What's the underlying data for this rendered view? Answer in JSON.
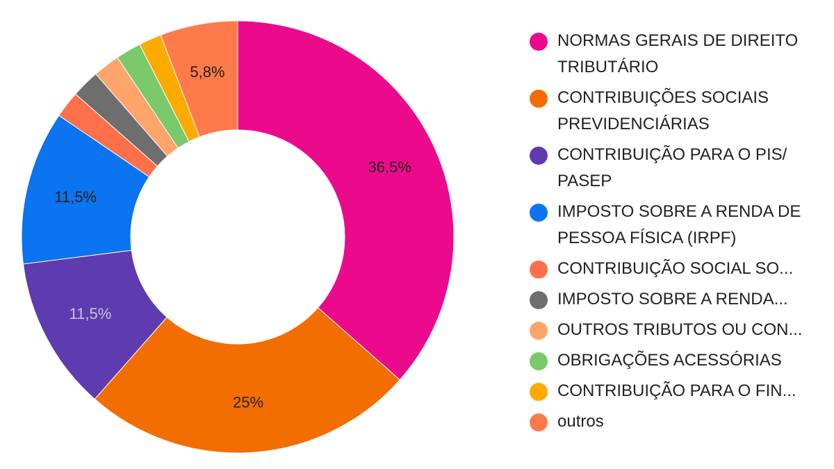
{
  "chart_data": {
    "type": "pie",
    "donut": true,
    "legend_position": "right",
    "slices": [
      {
        "name": "NORMAS GERAIS DE DIREITO TRIBUTÁRIO",
        "value": 36.5,
        "label": "36,5%",
        "color": "#EC0A8C",
        "label_color": "#222222"
      },
      {
        "name": "CONTRIBUIÇÕES SOCIAIS PREVIDENCIÁRIAS",
        "value": 25,
        "label": "25%",
        "color": "#F26E00",
        "label_color": "#222222"
      },
      {
        "name": "CONTRIBUIÇÃO PARA O PIS/ PASEP",
        "value": 11.5,
        "label": "11,5%",
        "color": "#5E3BAE",
        "label_color": "#C9C3DC"
      },
      {
        "name": "IMPOSTO SOBRE A RENDA DE PESSOA FÍSICA (IRPF)",
        "value": 11.5,
        "label": "11,5%",
        "color": "#0B74F0",
        "label_color": "#222222"
      },
      {
        "name": "CONTRIBUIÇÃO SOCIAL SO...",
        "value": 2,
        "label": "",
        "color": "#FF704A",
        "label_color": "#222222"
      },
      {
        "name": "IMPOSTO SOBRE A RENDA...",
        "value": 2.1,
        "label": "",
        "color": "#6E6E6E",
        "label_color": "#222222"
      },
      {
        "name": "OUTROS TRIBUTOS OU CON...",
        "value": 2,
        "label": "",
        "color": "#FFA46B",
        "label_color": "#222222"
      },
      {
        "name": "OBRIGAÇÕES ACESSÓRIAS",
        "value": 1.9,
        "label": "",
        "color": "#7AC96B",
        "label_color": "#222222"
      },
      {
        "name": "CONTRIBUIÇÃO PARA O FIN...",
        "value": 1.7,
        "label": "",
        "color": "#FFAA00",
        "label_color": "#222222"
      },
      {
        "name": "outros",
        "value": 5.8,
        "label": "5,8%",
        "color": "#FF7A4A",
        "label_color": "#222222"
      }
    ]
  },
  "legend": {
    "items": [
      {
        "label": "NORMAS GERAIS DE DIREITO TRIBUTÁRIO",
        "color": "#EC0A8C"
      },
      {
        "label": "CONTRIBUIÇÕES SOCIAIS PREVIDENCIÁRIAS",
        "color": "#F26E00"
      },
      {
        "label": "CONTRIBUIÇÃO PARA O PIS/ PASEP",
        "color": "#5E3BAE"
      },
      {
        "label": "IMPOSTO SOBRE A RENDA DE PESSOA FÍSICA (IRPF)",
        "color": "#0B74F0"
      },
      {
        "label": "CONTRIBUIÇÃO SOCIAL SO...",
        "color": "#FF704A"
      },
      {
        "label": "IMPOSTO SOBRE A RENDA...",
        "color": "#6E6E6E"
      },
      {
        "label": "OUTROS TRIBUTOS OU CON...",
        "color": "#FFA46B"
      },
      {
        "label": "OBRIGAÇÕES ACESSÓRIAS",
        "color": "#7AC96B"
      },
      {
        "label": "CONTRIBUIÇÃO PARA O FIN...",
        "color": "#FFAA00"
      },
      {
        "label": "outros",
        "color": "#FF7A4A"
      }
    ]
  }
}
